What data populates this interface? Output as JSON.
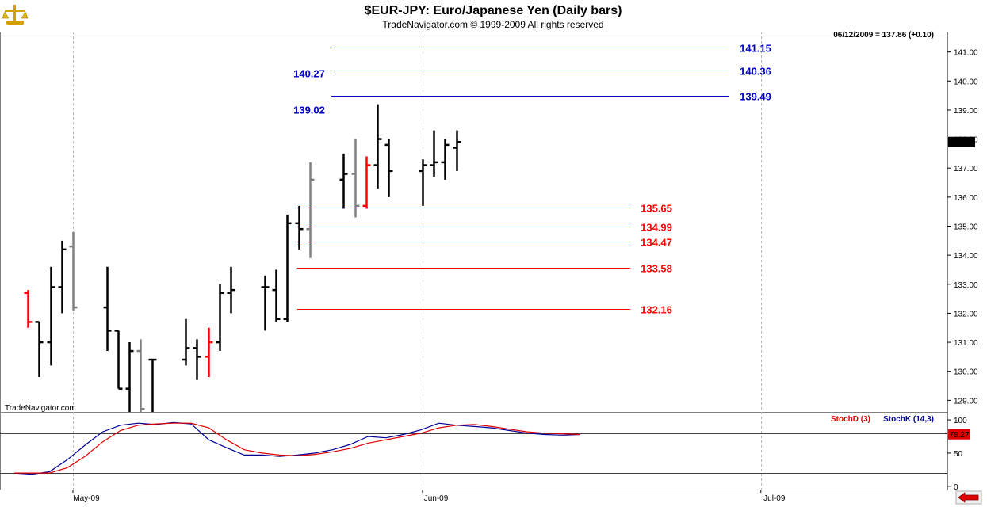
{
  "title": "$EUR-JPY:  Euro/Japanese Yen  (Daily bars)",
  "subtitle": "TradeNavigator.com © 1999-2009 All rights reserved",
  "last_info": "06/12/2009 = 137.86 (+0.10)",
  "last_price_tag": "137.86",
  "watermark": "TradeNavigator.com",
  "icons": {
    "logo": "scales-logo-icon",
    "nav": "left-arrow-icon"
  },
  "colors": {
    "up": "#000000",
    "gray": "#808080",
    "red": "#ff0000",
    "blue": "#0000c8",
    "stochK": "#000099",
    "stochD": "#dd0000"
  },
  "chart_data": [
    {
      "type": "ohlc",
      "ylim": [
        128.6,
        141.7
      ],
      "yticks": [
        "129.00",
        "130.00",
        "131.00",
        "132.00",
        "133.00",
        "134.00",
        "135.00",
        "136.00",
        "137.00",
        "138.00",
        "139.00",
        "140.00",
        "141.00"
      ],
      "xticks": [
        {
          "label": "May-09",
          "date": "2009-05-01"
        },
        {
          "label": "Jun-09",
          "date": "2009-06-01"
        },
        {
          "label": "Jul-09",
          "date": "2009-07-01"
        }
      ],
      "bars": [
        {
          "date": "2009-04-21",
          "o": 129.4,
          "h": 130.0,
          "l": 128.7,
          "c": 129.4,
          "color": "black"
        },
        {
          "date": "2009-04-22",
          "o": 129.4,
          "h": 131.2,
          "l": 128.6,
          "c": 130.3,
          "color": "black"
        },
        {
          "date": "2009-04-23",
          "o": 130.3,
          "h": 132.4,
          "l": 130.3,
          "c": 131.6,
          "color": "black"
        },
        {
          "date": "2009-04-24",
          "o": 131.6,
          "h": 132.9,
          "l": 131.3,
          "c": 132.7,
          "color": "black"
        },
        {
          "date": "2009-04-27",
          "o": 132.7,
          "h": 132.8,
          "l": 131.5,
          "c": 131.7,
          "color": "red"
        },
        {
          "date": "2009-04-28",
          "o": 131.7,
          "h": 131.7,
          "l": 129.8,
          "c": 131.0,
          "color": "black"
        },
        {
          "date": "2009-04-29",
          "o": 131.0,
          "h": 133.6,
          "l": 130.2,
          "c": 132.9,
          "color": "black"
        },
        {
          "date": "2009-04-30",
          "o": 132.9,
          "h": 134.5,
          "l": 132.0,
          "c": 134.2,
          "color": "black"
        },
        {
          "date": "2009-05-01",
          "o": 134.3,
          "h": 134.8,
          "l": 132.1,
          "c": 132.2,
          "color": "gray"
        },
        {
          "date": "2009-05-04",
          "o": 132.2,
          "h": 133.6,
          "l": 130.7,
          "c": 131.4,
          "color": "black"
        },
        {
          "date": "2009-05-05",
          "o": 131.4,
          "h": 131.4,
          "l": 129.4,
          "c": 129.4,
          "color": "black"
        },
        {
          "date": "2009-05-06",
          "o": 129.4,
          "h": 131.0,
          "l": 128.6,
          "c": 130.7,
          "color": "black"
        },
        {
          "date": "2009-05-07",
          "o": 130.7,
          "h": 131.1,
          "l": 128.6,
          "c": 128.7,
          "color": "gray"
        },
        {
          "date": "2009-05-08",
          "o": 130.4,
          "h": 130.4,
          "l": 128.6,
          "c": 130.4,
          "color": "black"
        },
        {
          "date": "2009-05-11",
          "o": 130.4,
          "h": 131.8,
          "l": 130.2,
          "c": 130.8,
          "color": "black"
        },
        {
          "date": "2009-05-12",
          "o": 130.8,
          "h": 131.1,
          "l": 129.7,
          "c": 130.5,
          "color": "black"
        },
        {
          "date": "2009-05-13",
          "o": 130.5,
          "h": 131.5,
          "l": 129.8,
          "c": 131.0,
          "color": "red"
        },
        {
          "date": "2009-05-14",
          "o": 131.0,
          "h": 133.0,
          "l": 130.7,
          "c": 132.7,
          "color": "black"
        },
        {
          "date": "2009-05-15",
          "o": 132.7,
          "h": 133.6,
          "l": 132.0,
          "c": 132.8,
          "color": "black"
        },
        {
          "date": "2009-05-18",
          "o": 132.9,
          "h": 133.3,
          "l": 131.4,
          "c": 132.9,
          "color": "black"
        },
        {
          "date": "2009-05-19",
          "o": 132.8,
          "h": 133.5,
          "l": 131.7,
          "c": 131.8,
          "color": "black"
        },
        {
          "date": "2009-05-20",
          "o": 131.8,
          "h": 135.4,
          "l": 131.7,
          "c": 135.1,
          "color": "black"
        },
        {
          "date": "2009-05-21",
          "o": 135.1,
          "h": 135.7,
          "l": 134.2,
          "c": 134.9,
          "color": "black"
        },
        {
          "date": "2009-05-22",
          "o": 134.9,
          "h": 137.2,
          "l": 133.9,
          "c": 136.6,
          "color": "gray"
        },
        {
          "date": "2009-05-25",
          "o": 136.6,
          "h": 137.5,
          "l": 135.6,
          "c": 136.8,
          "color": "black"
        },
        {
          "date": "2009-05-26",
          "o": 136.8,
          "h": 138.0,
          "l": 135.3,
          "c": 135.7,
          "color": "gray"
        },
        {
          "date": "2009-05-27",
          "o": 135.7,
          "h": 137.4,
          "l": 135.6,
          "c": 137.1,
          "color": "red"
        },
        {
          "date": "2009-05-28",
          "o": 137.1,
          "h": 139.2,
          "l": 136.3,
          "c": 138.0,
          "color": "black"
        },
        {
          "date": "2009-05-29",
          "o": 137.8,
          "h": 138.0,
          "l": 136.0,
          "c": 136.9,
          "color": "black"
        },
        {
          "date": "2009-06-01",
          "o": 136.9,
          "h": 137.3,
          "l": 135.7,
          "c": 137.1,
          "color": "black"
        },
        {
          "date": "2009-06-02",
          "o": 137.1,
          "h": 138.3,
          "l": 136.7,
          "c": 137.2,
          "color": "black"
        },
        {
          "date": "2009-06-03",
          "o": 137.2,
          "h": 138.0,
          "l": 136.6,
          "c": 137.8,
          "color": "black"
        },
        {
          "date": "2009-06-04",
          "o": 137.7,
          "h": 138.3,
          "l": 136.9,
          "c": 137.9,
          "color": "black"
        }
      ],
      "hlines": [
        {
          "value": 141.15,
          "label": "141.15",
          "color": "blue",
          "side": "right"
        },
        {
          "value": 140.36,
          "label": "140.36",
          "color": "blue",
          "side": "right"
        },
        {
          "value": 140.27,
          "label": "140.27",
          "color": "blue",
          "side": "left"
        },
        {
          "value": 139.49,
          "label": "139.49",
          "color": "blue",
          "side": "right"
        },
        {
          "value": 139.02,
          "label": "139.02",
          "color": "blue",
          "side": "left"
        },
        {
          "value": 135.65,
          "label": "135.65",
          "color": "red",
          "side": "right"
        },
        {
          "value": 134.99,
          "label": "134.99",
          "color": "red",
          "side": "right"
        },
        {
          "value": 134.47,
          "label": "134.47",
          "color": "red",
          "side": "right"
        },
        {
          "value": 133.58,
          "label": "133.58",
          "color": "red",
          "side": "right"
        },
        {
          "value": 132.16,
          "label": "132.16",
          "color": "red",
          "side": "right"
        }
      ]
    },
    {
      "type": "line",
      "ylim": [
        -5,
        112
      ],
      "yticks": [
        "0",
        "50",
        "100"
      ],
      "reference_levels": [
        20,
        80
      ],
      "last_value_tag": "78.27",
      "series": [
        {
          "name": "StochK (14,3)",
          "color": "blue",
          "values": [
            20,
            18,
            22,
            40,
            62,
            82,
            92,
            95,
            93,
            96,
            94,
            70,
            58,
            47,
            47,
            45,
            47,
            50,
            55,
            63,
            75,
            73,
            78,
            85,
            95,
            92,
            90,
            88,
            84,
            80,
            78,
            77,
            78
          ]
        },
        {
          "name": "StochD (3)",
          "color": "red",
          "values": [
            20,
            20,
            20,
            28,
            45,
            67,
            84,
            92,
            94,
            95,
            95,
            88,
            70,
            55,
            50,
            47,
            46,
            48,
            52,
            57,
            65,
            70,
            75,
            80,
            88,
            92,
            93,
            90,
            86,
            82,
            80,
            79,
            78
          ]
        }
      ]
    }
  ]
}
